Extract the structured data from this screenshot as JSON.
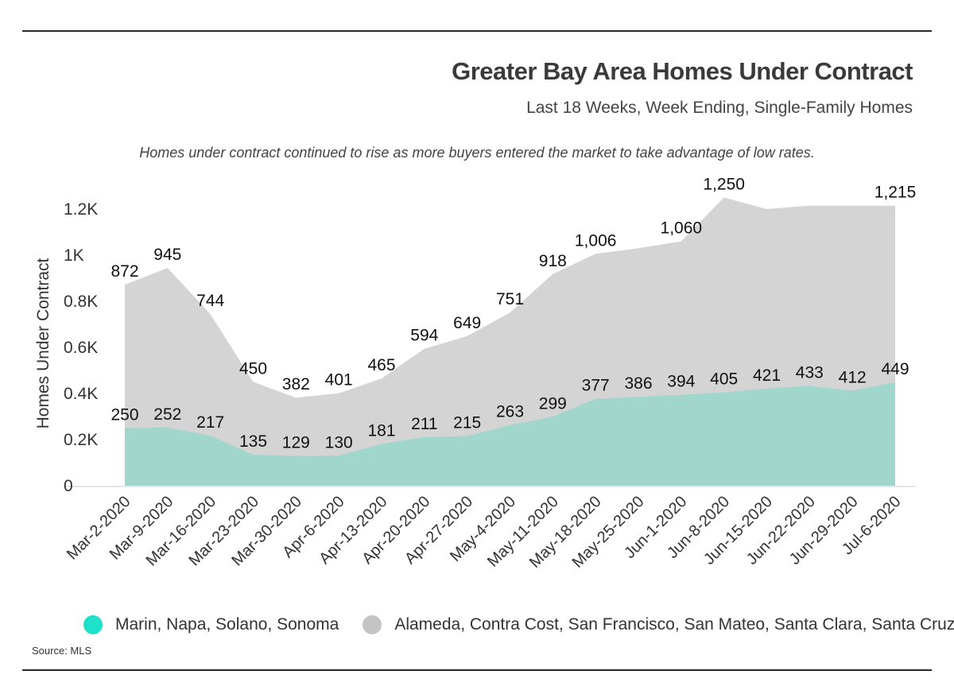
{
  "header": {
    "title": "Greater Bay Area Homes Under Contract",
    "subtitle": "Last 18 Weeks, Week Ending, Single-Family Homes"
  },
  "annotation": "Homes under contract continued to rise as more buyers entered the market to take advantage of low rates.",
  "source": "Source: MLS",
  "chart_data": {
    "type": "area",
    "title": "Greater Bay Area Homes Under Contract",
    "ylabel": "Homes Under Contract",
    "ylim": [
      0,
      1300
    ],
    "yticks": [
      0,
      200,
      400,
      600,
      800,
      1000,
      1200
    ],
    "ytick_labels": [
      "0",
      "0.2K",
      "0.4K",
      "0.6K",
      "0.8K",
      "1K",
      "1.2K"
    ],
    "grid": false,
    "legend_position": "bottom",
    "categories": [
      "Mar-2-2020",
      "Mar-9-2020",
      "Mar-16-2020",
      "Mar-23-2020",
      "Mar-30-2020",
      "Apr-6-2020",
      "Apr-13-2020",
      "Apr-20-2020",
      "Apr-27-2020",
      "May-4-2020",
      "May-11-2020",
      "May-18-2020",
      "May-25-2020",
      "Jun-1-2020",
      "Jun-8-2020",
      "Jun-15-2020",
      "Jun-22-2020",
      "Jun-29-2020",
      "Jul-6-2020"
    ],
    "series": [
      {
        "name": "Marin, Napa, Solano, Sonoma",
        "color": "#a0d6cb",
        "legend_color": "#1de1cb",
        "values": [
          250,
          252,
          217,
          135,
          129,
          130,
          181,
          211,
          215,
          263,
          299,
          377,
          386,
          394,
          405,
          421,
          433,
          412,
          449
        ],
        "labels": [
          "250",
          "252",
          "217",
          "135",
          "129",
          "130",
          "181",
          "211",
          "215",
          "263",
          "299",
          "377",
          "386",
          "394",
          "405",
          "421",
          "433",
          "412",
          "449"
        ]
      },
      {
        "name": "Alameda, Contra Cost, San Francisco, San Mateo, Santa Clara, Santa Cruz",
        "color": "#d4d4d4",
        "legend_color": "#c4c4c4",
        "values": [
          872,
          945,
          744,
          450,
          382,
          401,
          465,
          594,
          649,
          751,
          918,
          1006,
          1030,
          1060,
          1250,
          1200,
          1215,
          1215,
          1215
        ],
        "labels": [
          "872",
          "945",
          "744",
          "450",
          "382",
          "401",
          "465",
          "594",
          "649",
          "751",
          "918",
          "1,006",
          "",
          "1,060",
          "1,250",
          "",
          "",
          "",
          "1,215"
        ]
      }
    ]
  }
}
